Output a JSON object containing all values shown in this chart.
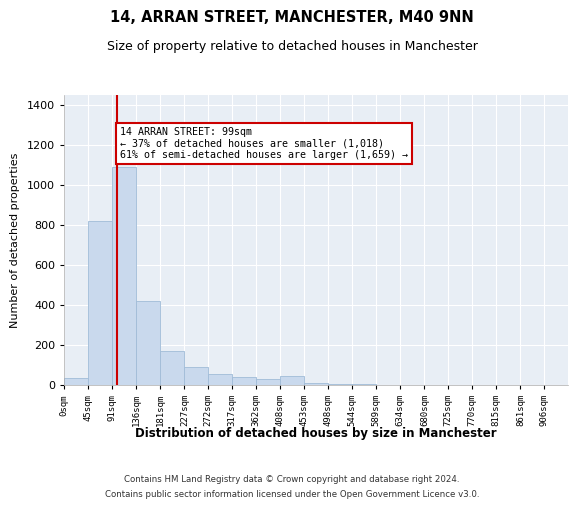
{
  "title1": "14, ARRAN STREET, MANCHESTER, M40 9NN",
  "title2": "Size of property relative to detached houses in Manchester",
  "xlabel": "Distribution of detached houses by size in Manchester",
  "ylabel": "Number of detached properties",
  "bar_color": "#c9d9ed",
  "bar_edge_color": "#a0bcd8",
  "annotation_box_text": "14 ARRAN STREET: 99sqm\n← 37% of detached houses are smaller (1,018)\n61% of semi-detached houses are larger (1,659) →",
  "annotation_box_color": "white",
  "annotation_box_edge_color": "#cc0000",
  "marker_line_color": "#cc0000",
  "marker_x": 99,
  "footer1": "Contains HM Land Registry data © Crown copyright and database right 2024.",
  "footer2": "Contains public sector information licensed under the Open Government Licence v3.0.",
  "bin_edges": [
    0,
    45,
    91,
    136,
    181,
    227,
    272,
    317,
    362,
    408,
    453,
    498,
    544,
    589,
    634,
    680,
    725,
    770,
    815,
    861,
    906
  ],
  "bar_heights": [
    35,
    820,
    1090,
    420,
    170,
    90,
    55,
    40,
    30,
    45,
    10,
    5,
    3,
    1,
    1,
    0,
    0,
    0,
    0,
    0
  ],
  "ylim": [
    0,
    1450
  ],
  "xlim": [
    0,
    951
  ],
  "yticks": [
    0,
    200,
    400,
    600,
    800,
    1000,
    1200,
    1400
  ],
  "background_color": "#ffffff",
  "plot_bg_color": "#e8eef5",
  "grid_color": "#ffffff"
}
